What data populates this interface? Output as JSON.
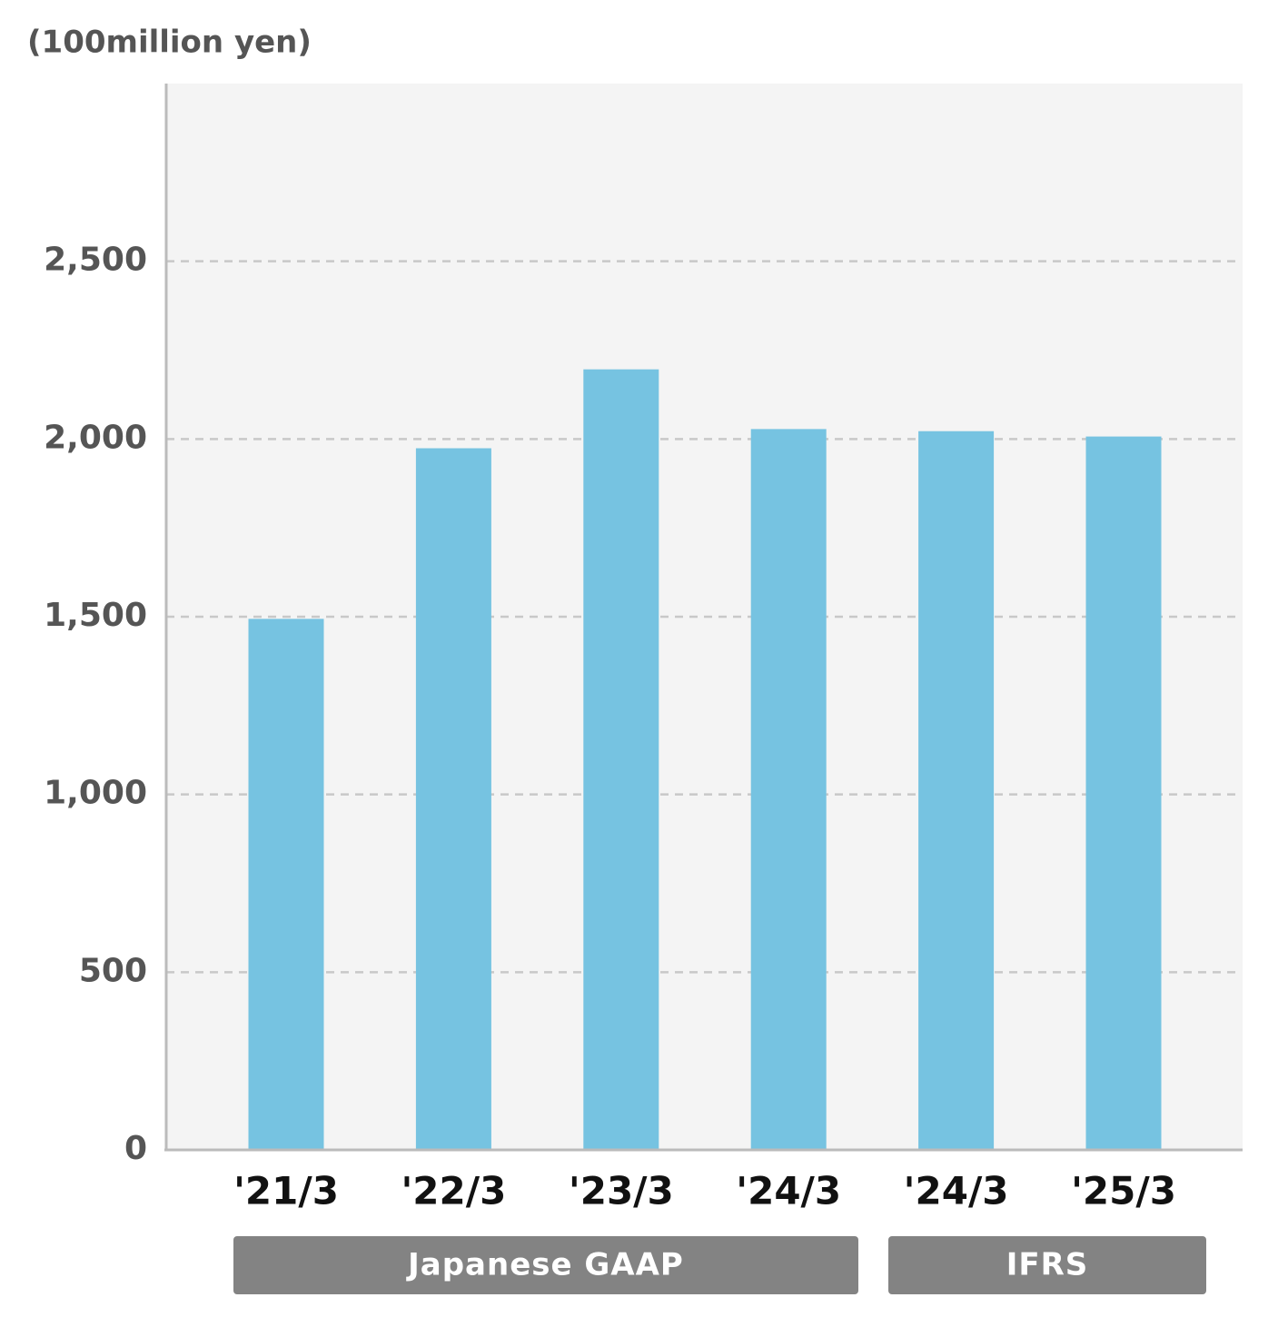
{
  "chart_data": {
    "type": "bar",
    "y_unit_label": "(100million yen)",
    "categories": [
      "'21/3",
      "'22/3",
      "'23/3",
      "'24/3",
      "'24/3",
      "'25/3"
    ],
    "values": [
      1494,
      1974,
      2196,
      2028,
      2022,
      2007
    ],
    "color": "#76c3e1",
    "ylim": [
      0,
      3000
    ],
    "yticks": [
      0,
      500,
      {
        "value": 1000,
        "label": "1,000"
      },
      {
        "value": 1500,
        "label": "1,500"
      },
      {
        "value": 2000,
        "label": "2,000"
      },
      {
        "value": 2500,
        "label": "2,500"
      }
    ],
    "grid": true,
    "groups": [
      {
        "label": "Japanese GAAP"
      },
      {
        "label": "IFRS"
      }
    ]
  }
}
